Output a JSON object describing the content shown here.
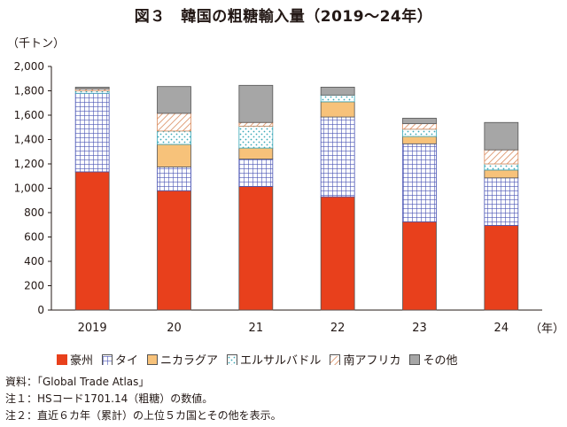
{
  "title": "図３　韓国の粗糖輸入量（2019～24年）",
  "ylabel": "（千トン）",
  "xunit": "（年）",
  "notes": [
    "資料：「Global Trade Atlas」",
    "注１：HSコード1701.14（粗糖）の数値。",
    "注２：直近６カ年（累計）の上位５カ国とその他を表示。"
  ],
  "colors": {
    "australia": "#e8401c",
    "thailand": "#4a55b5",
    "nicaragua": "#f7c27a",
    "el_salvador": "#3aa8b8",
    "south_africa": "#d98a5c",
    "other": "#a6a6a6"
  },
  "chart_data": {
    "type": "bar",
    "stacked": true,
    "categories": [
      "2019",
      "20",
      "21",
      "22",
      "23",
      "24"
    ],
    "ylim": [
      0,
      2000
    ],
    "yticks": [
      0,
      200,
      400,
      600,
      800,
      1000,
      1200,
      1400,
      1600,
      1800,
      2000
    ],
    "ytick_labels": [
      "0",
      "200",
      "400",
      "600",
      "800",
      "1,000",
      "1,200",
      "1,400",
      "1,600",
      "1,800",
      "2,000"
    ],
    "grid": false,
    "legend_position": "bottom",
    "series": [
      {
        "key": "australia",
        "name": "豪州",
        "values": [
          1135,
          980,
          1015,
          930,
          725,
          695
        ]
      },
      {
        "key": "thailand",
        "name": "タイ",
        "values": [
          645,
          195,
          225,
          655,
          640,
          390
        ]
      },
      {
        "key": "nicaragua",
        "name": "ニカラグア",
        "values": [
          0,
          185,
          90,
          125,
          60,
          65
        ]
      },
      {
        "key": "el_salvador",
        "name": "エルサルバドル",
        "values": [
          20,
          110,
          180,
          55,
          60,
          50
        ]
      },
      {
        "key": "south_africa",
        "name": "南アフリカ",
        "values": [
          15,
          145,
          30,
          0,
          45,
          115
        ]
      },
      {
        "key": "other",
        "name": "その他",
        "values": [
          15,
          220,
          305,
          65,
          45,
          225
        ]
      }
    ]
  }
}
